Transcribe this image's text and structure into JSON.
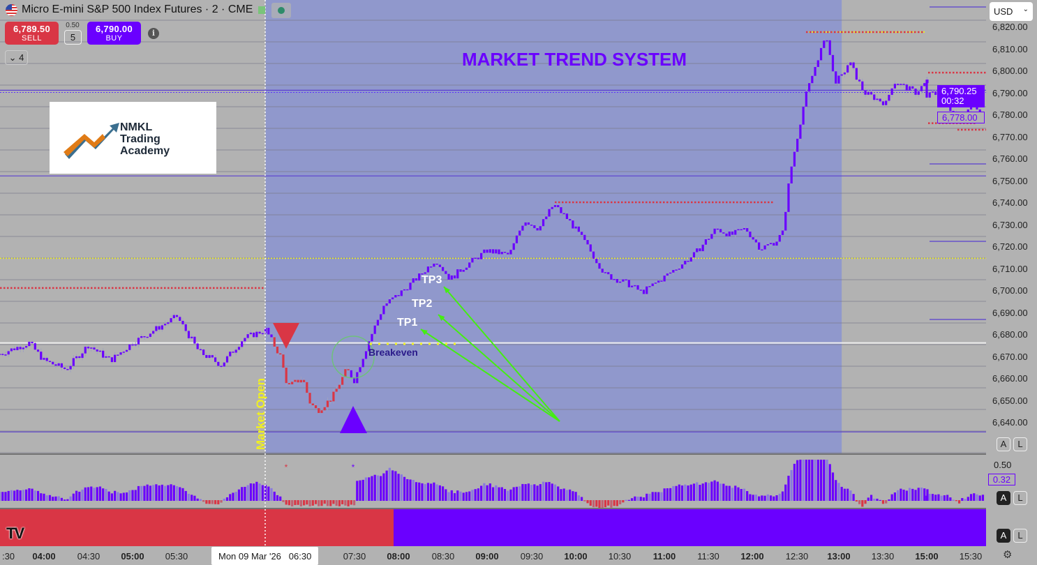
{
  "header": {
    "title": "Micro E-mini S&P 500 Index Futures · 2 · CME",
    "flag_icon": "us-flag-icon"
  },
  "order": {
    "sell_price": "6,789.50",
    "sell_label": "SELL",
    "buy_price": "6,790.00",
    "buy_label": "BUY",
    "spread": "0.50",
    "quantity": "5",
    "indicators_count": "4"
  },
  "currency": "USD",
  "price_axis": {
    "labels": [
      "6,820.00",
      "6,810.00",
      "6,800.00",
      "6,790.00",
      "6,780.00",
      "6,770.00",
      "6,760.00",
      "6,750.00",
      "6,740.00",
      "6,730.00",
      "6,720.00",
      "6,710.00",
      "6,700.00",
      "6,690.00",
      "6,680.00",
      "6,670.00",
      "6,660.00",
      "6,650.00",
      "6,640.00"
    ],
    "current_price": "6,790.25",
    "countdown": "00:32",
    "low_marker": "6,778.00",
    "auto_label": "A",
    "log_label": "L"
  },
  "oscillator": {
    "level_label": "0.50",
    "value": "0.32"
  },
  "time_axis": {
    "labels": [
      ":30",
      "04:00",
      "04:30",
      "05:00",
      "05:30",
      "07:30",
      "08:00",
      "08:30",
      "09:00",
      "09:30",
      "10:00",
      "10:30",
      "11:00",
      "11:30",
      "12:00",
      "12:30",
      "13:00",
      "13:30",
      "15:00",
      "15:30"
    ],
    "bold": [
      false,
      true,
      false,
      true,
      false,
      false,
      true,
      false,
      true,
      false,
      true,
      false,
      true,
      false,
      true,
      false,
      true,
      false,
      true,
      false
    ],
    "crosshair_date": "Mon 09 Mar '26",
    "crosshair_time": "06:30"
  },
  "logo": {
    "name": "NMKL",
    "line2": "Trading",
    "line3": "Academy"
  },
  "annotations": {
    "title": "MARKET TREND SYSTEM",
    "tp1": "TP1",
    "tp2": "TP2",
    "tp3": "TP3",
    "breakeven": "Breakeven",
    "market_open": "Market Open"
  },
  "colors": {
    "bull": "#6a00ff",
    "bear": "#d93645",
    "session": "#9098cc",
    "background": "#b2b2b2",
    "arrows": "#44ee11",
    "yellow": "#f0f020"
  },
  "chart_data": {
    "type": "candlestick",
    "interval": "2 min",
    "price_range": [
      6640,
      6820
    ],
    "close_path": [
      [
        "03:30",
        6671
      ],
      [
        "03:50",
        6676
      ],
      [
        "04:00",
        6668
      ],
      [
        "04:15",
        6664
      ],
      [
        "04:30",
        6675
      ],
      [
        "04:45",
        6668
      ],
      [
        "05:00",
        6676
      ],
      [
        "05:20",
        6684
      ],
      [
        "05:30",
        6688
      ],
      [
        "05:45",
        6672
      ],
      [
        "06:00",
        6666
      ],
      [
        "06:15",
        6678
      ],
      [
        "06:30",
        6682
      ],
      [
        "06:40",
        6670
      ],
      [
        "06:45",
        6656
      ],
      [
        "06:55",
        6660
      ],
      [
        "07:00",
        6649
      ],
      [
        "07:05",
        6645
      ],
      [
        "07:15",
        6651
      ],
      [
        "07:25",
        6664
      ],
      [
        "07:30",
        6659
      ],
      [
        "07:40",
        6677
      ],
      [
        "07:50",
        6693
      ],
      [
        "08:00",
        6698
      ],
      [
        "08:15",
        6707
      ],
      [
        "08:25",
        6714
      ],
      [
        "08:35",
        6705
      ],
      [
        "08:45",
        6711
      ],
      [
        "09:00",
        6718
      ],
      [
        "09:15",
        6716
      ],
      [
        "09:25",
        6732
      ],
      [
        "09:35",
        6728
      ],
      [
        "09:45",
        6739
      ],
      [
        "09:55",
        6732
      ],
      [
        "10:05",
        6723
      ],
      [
        "10:20",
        6707
      ],
      [
        "10:35",
        6703
      ],
      [
        "10:45",
        6699
      ],
      [
        "11:00",
        6706
      ],
      [
        "11:20",
        6716
      ],
      [
        "11:35",
        6728
      ],
      [
        "11:45",
        6725
      ],
      [
        "11:55",
        6728
      ],
      [
        "12:05",
        6719
      ],
      [
        "12:15",
        6722
      ],
      [
        "12:20",
        6726
      ],
      [
        "12:25",
        6753
      ],
      [
        "12:35",
        6787
      ],
      [
        "12:45",
        6808
      ],
      [
        "12:50",
        6815
      ],
      [
        "12:55",
        6795
      ],
      [
        "13:00",
        6797
      ],
      [
        "13:05",
        6804
      ],
      [
        "13:15",
        6790
      ],
      [
        "13:30",
        6785
      ],
      [
        "13:35",
        6795
      ],
      [
        "13:50",
        6790
      ],
      [
        "13:58",
        6795
      ],
      [
        "15:00",
        6788
      ],
      [
        "15:05",
        6790
      ],
      [
        "15:15",
        6783
      ],
      [
        "15:25",
        6778
      ],
      [
        "15:30",
        6785
      ],
      [
        "15:40",
        6777
      ]
    ],
    "bearish_signal_window": [
      "06:36",
      "07:26"
    ],
    "levels": {
      "white": 6676,
      "yellow_dotted": [
        6714.5,
        6817.5
      ],
      "red_dotted": [
        6701,
        6740,
        6799,
        6776,
        6773
      ],
      "blue_dotted": 6790,
      "purple": [
        6791,
        6635.5,
        6752
      ]
    },
    "session_highlight": [
      "06:30",
      "13:00"
    ]
  }
}
